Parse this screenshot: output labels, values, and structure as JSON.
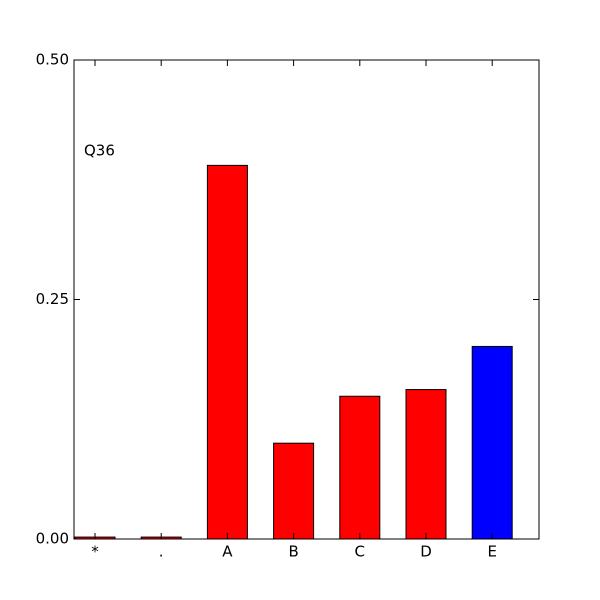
{
  "chart_data": {
    "type": "bar",
    "annotation": "Q36",
    "categories": [
      "*",
      ".",
      "A",
      "B",
      "C",
      "D",
      "E"
    ],
    "values": [
      0.002,
      0.002,
      0.39,
      0.1,
      0.149,
      0.156,
      0.201
    ],
    "colors": [
      "#ff0000",
      "#ff0000",
      "#ff0000",
      "#ff0000",
      "#ff0000",
      "#ff0000",
      "#0000ff"
    ],
    "ylim": [
      0,
      0.5
    ],
    "yticks": [
      {
        "value": 0,
        "label": "0.00"
      },
      0.25,
      {
        "value": 0.5,
        "label": "0.50"
      }
    ],
    "grid": false
  }
}
